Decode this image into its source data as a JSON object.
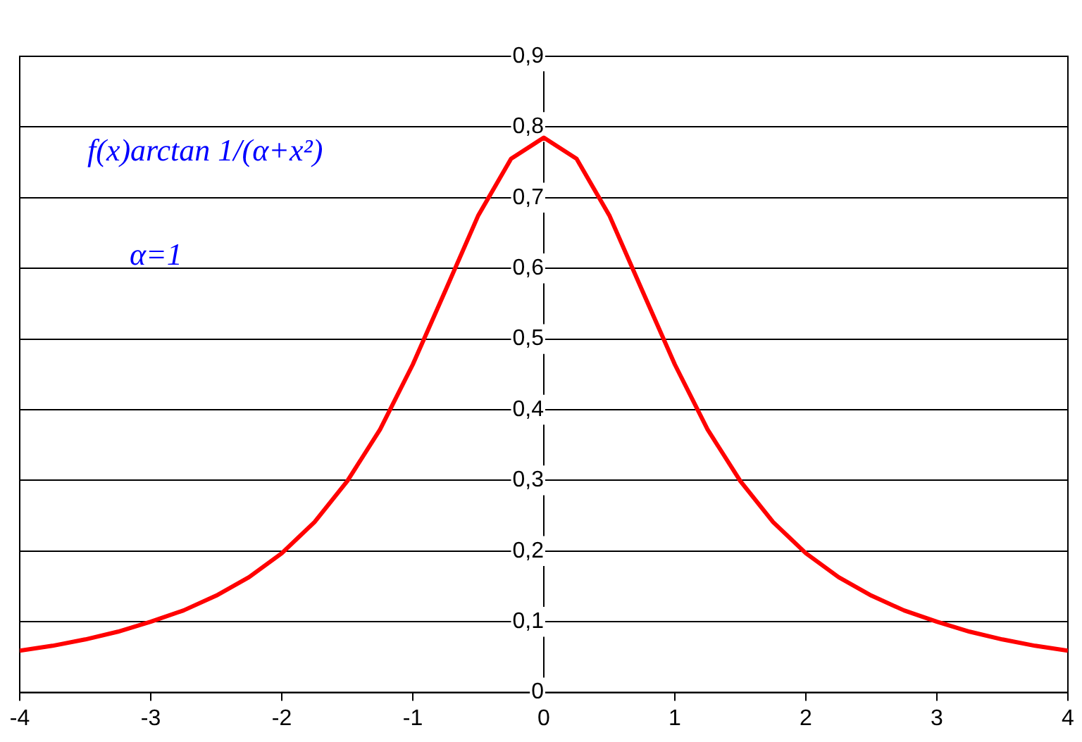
{
  "chart_data": {
    "type": "line",
    "annotations": [
      "f(x)arctan 1/(α+x²)",
      "α=1"
    ],
    "x": [
      -4,
      -3.75,
      -3.5,
      -3.25,
      -3,
      -2.75,
      -2.5,
      -2.25,
      -2,
      -1.75,
      -1.5,
      -1.25,
      -1,
      -0.75,
      -0.5,
      -0.25,
      0,
      0.25,
      0.5,
      0.75,
      1,
      1.25,
      1.5,
      1.75,
      2,
      2.25,
      2.5,
      2.75,
      3,
      3.25,
      3.5,
      3.75,
      4
    ],
    "series": [
      {
        "color": "#ff0000",
        "values": [
          0.059,
          0.066,
          0.075,
          0.086,
          0.1,
          0.116,
          0.137,
          0.163,
          0.197,
          0.241,
          0.299,
          0.372,
          0.464,
          0.569,
          0.675,
          0.755,
          0.785,
          0.755,
          0.675,
          0.569,
          0.464,
          0.372,
          0.299,
          0.241,
          0.197,
          0.163,
          0.137,
          0.116,
          0.1,
          0.086,
          0.075,
          0.066,
          0.059
        ]
      }
    ],
    "xlim": [
      -4,
      4
    ],
    "xticks": [
      -4,
      -3,
      -2,
      -1,
      0,
      1,
      2,
      3,
      4
    ],
    "ylim": [
      0,
      0.9
    ],
    "yticks": [
      0,
      {
        "value": 0.1,
        "label": "0,1"
      },
      {
        "value": 0.2,
        "label": "0,2"
      },
      {
        "value": 0.3,
        "label": "0,3"
      },
      {
        "value": 0.4,
        "label": "0,4"
      },
      {
        "value": 0.5,
        "label": "0,5"
      },
      {
        "value": 0.6,
        "label": "0,6"
      },
      {
        "value": 0.7,
        "label": "0,7"
      },
      {
        "value": 0.8,
        "label": "0,8"
      },
      {
        "value": 0.9,
        "label": "0,9"
      }
    ],
    "grid": "y",
    "legend": false,
    "marker": "none",
    "line_style": "solid"
  }
}
